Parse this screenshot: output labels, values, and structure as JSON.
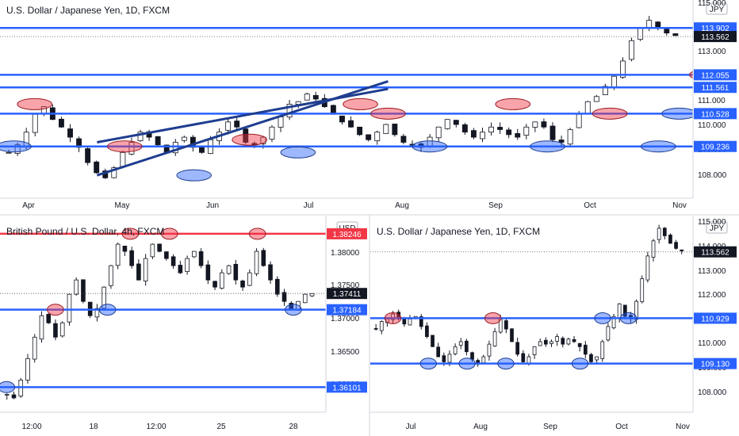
{
  "chart_data": [
    {
      "type": "candlestick",
      "title": "U.S. Dollar / Japanese Yen, 1D, FXCM",
      "currency": "JPY",
      "x_ticks": [
        "Apr",
        "May",
        "Jun",
        "Jul",
        "Aug",
        "Sep",
        "Oct",
        "Nov"
      ],
      "y_ticks": [
        "108.000",
        "109.000",
        "110.000",
        "111.000",
        "112.000",
        "113.000",
        "114.000",
        "115.000"
      ],
      "ylim": [
        107.2,
        115.0
      ],
      "grid": false,
      "levels": [
        {
          "value": 113.902,
          "label": "113.902",
          "color": "#2962ff"
        },
        {
          "value": 112.055,
          "label": "112.055",
          "color": "#2962ff"
        },
        {
          "value": 111.561,
          "label": "111.561",
          "color": "#2962ff"
        },
        {
          "value": 110.528,
          "label": "110.528",
          "color": "#2962ff"
        },
        {
          "value": 109.236,
          "label": "109.236",
          "color": "#2962ff"
        }
      ],
      "last_price": {
        "value": 113.562,
        "label": "113.562"
      },
      "channel": [
        {
          "value_start": 108.1,
          "value_end": 111.8
        },
        {
          "value_start": 109.4,
          "value_end": 111.5
        }
      ],
      "path": [
        109.0,
        109.3,
        109.8,
        110.5,
        110.8,
        110.3,
        110.0,
        109.6,
        109.2,
        108.6,
        108.2,
        108.0,
        108.4,
        109.0,
        109.4,
        109.8,
        109.6,
        109.3,
        109.0,
        109.4,
        109.6,
        109.2,
        109.0,
        109.5,
        109.8,
        110.2,
        110.0,
        109.4,
        109.3,
        109.6,
        110.0,
        110.4,
        110.9,
        111.0,
        111.3,
        111.1,
        110.8,
        110.5,
        110.2,
        110.0,
        109.7,
        109.5,
        109.8,
        110.1,
        109.7,
        109.4,
        109.3,
        109.2,
        109.6,
        110.0,
        110.3,
        110.1,
        109.8,
        109.6,
        109.8,
        110.0,
        109.9,
        109.7,
        109.6,
        110.0,
        110.2,
        110.0,
        109.5,
        109.4,
        109.9,
        110.5,
        111.0,
        111.2,
        111.6,
        112.0,
        112.6,
        113.4,
        113.9,
        114.2,
        113.9,
        113.7,
        113.6
      ],
      "supports": [
        {
          "pos": 0.02,
          "value": 109.236
        },
        {
          "pos": 0.28,
          "value": 108.1
        },
        {
          "pos": 0.43,
          "value": 109.0
        },
        {
          "pos": 0.62,
          "value": 109.236
        },
        {
          "pos": 0.79,
          "value": 109.236
        },
        {
          "pos": 0.95,
          "value": 109.236
        },
        {
          "pos": 0.98,
          "value": 110.528
        },
        {
          "pos": 1.04,
          "value": 112.055
        }
      ],
      "resistances": [
        {
          "pos": 0.05,
          "value": 110.9
        },
        {
          "pos": 0.18,
          "value": 109.236
        },
        {
          "pos": 0.36,
          "value": 109.5
        },
        {
          "pos": 0.52,
          "value": 110.9
        },
        {
          "pos": 0.56,
          "value": 110.528
        },
        {
          "pos": 0.74,
          "value": 110.9
        },
        {
          "pos": 0.88,
          "value": 110.528
        },
        {
          "pos": 1.02,
          "value": 112.055
        }
      ]
    },
    {
      "type": "candlestick",
      "title": "British Pound / U.S. Dollar, 4h, FXCM",
      "currency": "USD",
      "x_ticks": [
        "12:00",
        "18",
        "12:00",
        "25",
        "28"
      ],
      "y_ticks": [
        "1.36000",
        "1.36500",
        "1.37000",
        "1.37500",
        "1.38000"
      ],
      "ylim": [
        1.3575,
        1.385
      ],
      "grid": false,
      "levels": [
        {
          "value": 1.38246,
          "label": "1.38246",
          "color": "#f23645"
        },
        {
          "value": 1.37184,
          "label": "1.37184",
          "color": "#2962ff"
        },
        {
          "value": 1.36101,
          "label": "1.36101",
          "color": "#2962ff"
        }
      ],
      "last_price": {
        "value": 1.37411,
        "label": "1.37411"
      },
      "path": [
        1.36,
        1.3595,
        1.362,
        1.365,
        1.368,
        1.371,
        1.37,
        1.368,
        1.37,
        1.374,
        1.376,
        1.373,
        1.371,
        1.372,
        1.375,
        1.378,
        1.381,
        1.38,
        1.378,
        1.376,
        1.379,
        1.381,
        1.38,
        1.379,
        1.378,
        1.377,
        1.379,
        1.38,
        1.378,
        1.376,
        1.375,
        1.377,
        1.378,
        1.376,
        1.375,
        1.377,
        1.38,
        1.378,
        1.376,
        1.374,
        1.373,
        1.372,
        1.373,
        1.374,
        1.3741
      ],
      "supports": [
        {
          "pos": 0.02,
          "value": 1.36101
        },
        {
          "pos": 0.33,
          "value": 1.37184
        },
        {
          "pos": 0.9,
          "value": 1.37184
        }
      ],
      "resistances": [
        {
          "pos": 0.17,
          "value": 1.37184
        },
        {
          "pos": 0.4,
          "value": 1.38246
        },
        {
          "pos": 0.52,
          "value": 1.38246
        },
        {
          "pos": 0.79,
          "value": 1.38246
        }
      ]
    },
    {
      "type": "candlestick",
      "title": "U.S. Dollar / Japanese Yen, 1D, FXCM",
      "currency": "JPY",
      "x_ticks": [
        "Jul",
        "Aug",
        "Sep",
        "Oct",
        "Nov"
      ],
      "y_ticks": [
        "108.000",
        "109.000",
        "110.000",
        "111.000",
        "112.000",
        "113.000",
        "114.000",
        "115.000"
      ],
      "ylim": [
        107.2,
        115.0
      ],
      "grid": false,
      "levels": [
        {
          "value": 110.929,
          "label": "110.929",
          "color": "#2962ff"
        },
        {
          "value": 109.13,
          "label": "109.130",
          "color": "#2962ff"
        }
      ],
      "last_price": {
        "value": 113.562,
        "label": "113.562"
      },
      "path": [
        110.5,
        110.8,
        110.9,
        111.1,
        110.9,
        110.7,
        110.9,
        111.0,
        110.6,
        110.2,
        109.8,
        109.4,
        109.2,
        109.5,
        109.8,
        110.0,
        109.6,
        109.3,
        109.1,
        109.4,
        109.9,
        110.4,
        110.9,
        110.5,
        110.0,
        109.5,
        109.2,
        109.4,
        109.8,
        110.0,
        109.9,
        110.0,
        110.2,
        109.9,
        110.1,
        110.0,
        109.8,
        109.5,
        109.2,
        109.4,
        110.0,
        110.6,
        111.0,
        111.5,
        111.0,
        110.9,
        111.6,
        112.5,
        113.4,
        114.0,
        114.5,
        114.2,
        113.9,
        113.7,
        113.6
      ],
      "supports": [
        {
          "pos": 0.18,
          "value": 109.13
        },
        {
          "pos": 0.3,
          "value": 109.13
        },
        {
          "pos": 0.42,
          "value": 109.13
        },
        {
          "pos": 0.65,
          "value": 109.13
        },
        {
          "pos": 0.72,
          "value": 110.929
        },
        {
          "pos": 0.8,
          "value": 110.929
        }
      ],
      "resistances": [
        {
          "pos": 0.07,
          "value": 110.929
        },
        {
          "pos": 0.38,
          "value": 110.929
        }
      ]
    }
  ]
}
